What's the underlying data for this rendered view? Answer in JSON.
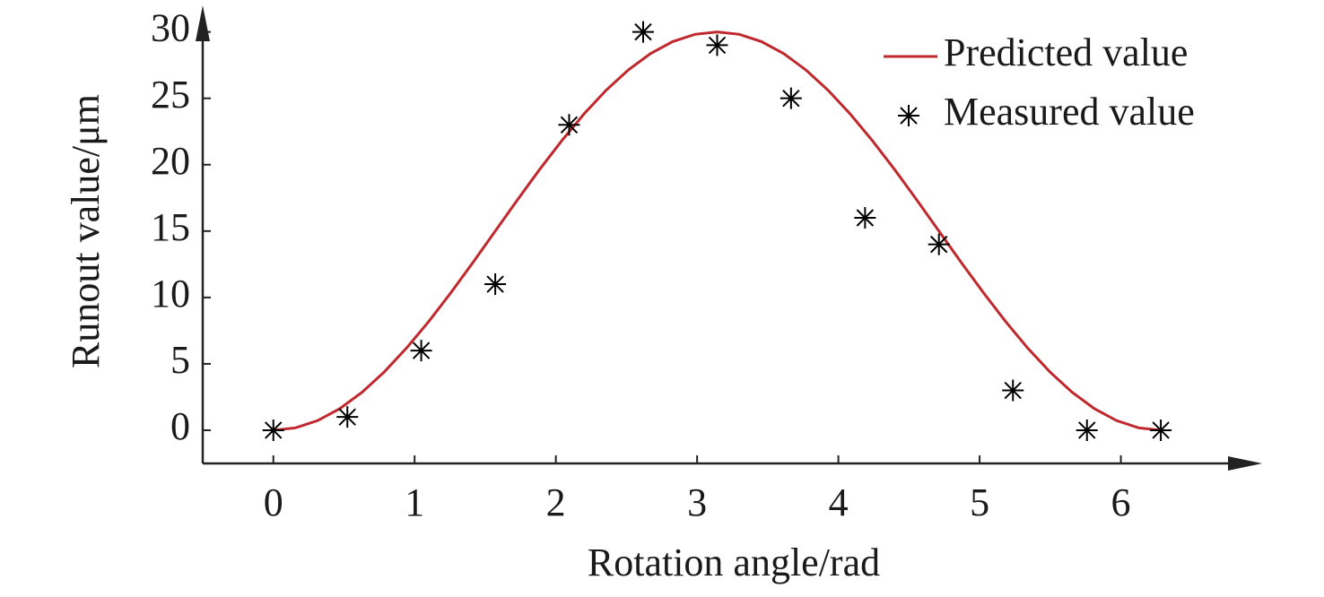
{
  "chart_data": {
    "type": "line",
    "x_label": "Rotation angle/rad",
    "y_label": "Runout value/μm",
    "xlim": [
      -0.5,
      7
    ],
    "ylim": [
      -2.5,
      32
    ],
    "xticks": [
      0,
      1,
      2,
      3,
      4,
      5,
      6
    ],
    "yticks": [
      0,
      5,
      10,
      15,
      20,
      25,
      30
    ],
    "grid": false,
    "legend": "top-right",
    "series": [
      {
        "name": "Predicted value",
        "color": "#c0282d",
        "mode": "line",
        "x": [
          0,
          0.157,
          0.314,
          0.471,
          0.628,
          0.785,
          0.942,
          1.1,
          1.257,
          1.414,
          1.571,
          1.728,
          1.885,
          2.042,
          2.199,
          2.356,
          2.513,
          2.67,
          2.827,
          2.985,
          3.142,
          3.299,
          3.456,
          3.613,
          3.77,
          3.927,
          4.084,
          4.241,
          4.398,
          4.555,
          4.712,
          4.869,
          5.027,
          5.184,
          5.341,
          5.498,
          5.655,
          5.812,
          5.969,
          6.126,
          6.283
        ],
        "values": [
          0,
          0.18,
          0.73,
          1.63,
          2.86,
          4.39,
          6.18,
          8.19,
          10.36,
          12.65,
          15,
          17.35,
          19.64,
          21.81,
          23.82,
          25.61,
          27.14,
          28.37,
          29.27,
          29.82,
          30,
          29.82,
          29.27,
          28.37,
          27.14,
          25.61,
          23.82,
          21.81,
          19.64,
          17.35,
          15,
          12.65,
          10.36,
          8.19,
          6.18,
          4.39,
          2.86,
          1.63,
          0.73,
          0.18,
          0
        ]
      },
      {
        "name": "Measured value",
        "color": "#000000",
        "mode": "markers",
        "x": [
          0,
          0.524,
          1.047,
          1.571,
          2.094,
          2.618,
          3.142,
          3.665,
          4.189,
          4.712,
          5.236,
          5.76,
          6.283
        ],
        "values": [
          0,
          1,
          6,
          11,
          23,
          30,
          29,
          25,
          16,
          14,
          3,
          0,
          0
        ]
      }
    ]
  }
}
